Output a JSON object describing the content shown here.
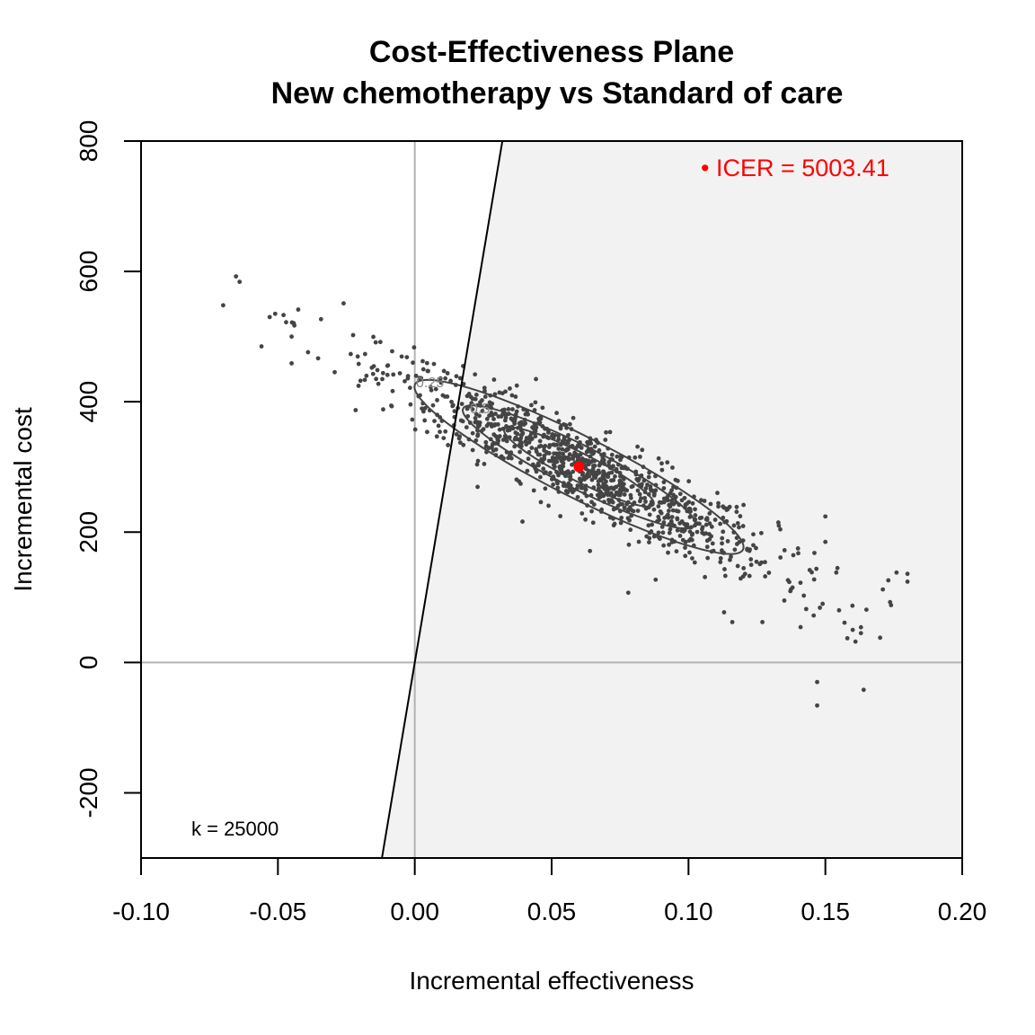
{
  "chart_data": {
    "type": "scatter",
    "title": "Cost-Effectiveness Plane",
    "subtitle": "New chemotherapy vs Standard of care",
    "xlabel": "Incremental effectiveness",
    "ylabel": "Incremental cost",
    "xlim": [
      -0.1,
      0.2
    ],
    "ylim": [
      -300,
      800
    ],
    "x_ticks": [
      -0.1,
      -0.05,
      0.0,
      0.05,
      0.1,
      0.15,
      0.2
    ],
    "x_tick_labels": [
      "-0.10",
      "-0.05",
      "0.00",
      "0.05",
      "0.10",
      "0.15",
      "0.20"
    ],
    "y_ticks": [
      -200,
      0,
      200,
      400,
      600,
      800
    ],
    "y_tick_labels": [
      "-200",
      "0",
      "200",
      "400",
      "600",
      "800"
    ],
    "grid": false,
    "reference_lines": {
      "x": 0,
      "y": 0,
      "color": "#b3b3b3"
    },
    "willingness_to_pay": {
      "k": 25000,
      "label": "k = 25000",
      "label_position": "bottom-left"
    },
    "sustainability_area_color": "#f2f2f2",
    "point_color": "#444444",
    "icer": {
      "x": 0.06,
      "y": 300.2,
      "value": 5003.41,
      "label": "• ICER = 5003.41",
      "color": "#ff0000",
      "label_position": "top-right"
    },
    "contours": [
      {
        "level": "0.25",
        "center": [
          0.06,
          300
        ],
        "sd": [
          0.036,
          80
        ],
        "rho": -0.92,
        "scale": 1.67
      },
      {
        "level": "0.5",
        "center": [
          0.06,
          300
        ],
        "sd": [
          0.036,
          80
        ],
        "rho": -0.92,
        "scale": 1.18
      },
      {
        "level": "0.75",
        "center": [
          0.06,
          300
        ],
        "sd": [
          0.036,
          80
        ],
        "rho": -0.92,
        "scale": 0.76
      }
    ],
    "simulations": {
      "n": 1000,
      "mean": [
        0.06,
        300
      ],
      "sd": [
        0.036,
        80
      ],
      "rho": -0.92,
      "note": "bivariate normal cloud of PSA simulations (e, c)"
    },
    "outliers": [
      [
        -0.07,
        548
      ],
      [
        -0.064,
        584
      ],
      [
        -0.053,
        530
      ],
      [
        -0.051,
        535
      ],
      [
        -0.047,
        522
      ],
      [
        -0.044,
        517
      ],
      [
        -0.045,
        500
      ],
      [
        -0.056,
        485
      ],
      [
        -0.045,
        459
      ],
      [
        -0.026,
        551
      ],
      [
        -0.039,
        476
      ],
      [
        0.007,
        458
      ],
      [
        0.022,
        442
      ],
      [
        0.064,
        171
      ],
      [
        0.078,
        107
      ],
      [
        0.088,
        127
      ],
      [
        0.106,
        131
      ],
      [
        0.113,
        77
      ],
      [
        0.116,
        62
      ],
      [
        0.127,
        62
      ],
      [
        0.135,
        95
      ],
      [
        0.138,
        115
      ],
      [
        0.143,
        82
      ],
      [
        0.148,
        84
      ],
      [
        0.149,
        90
      ],
      [
        0.155,
        80
      ],
      [
        0.154,
        138
      ],
      [
        0.157,
        61
      ],
      [
        0.16,
        50
      ],
      [
        0.161,
        32
      ],
      [
        0.163,
        45
      ],
      [
        0.165,
        81
      ],
      [
        0.171,
        112
      ],
      [
        0.173,
        126
      ],
      [
        0.174,
        88
      ],
      [
        0.176,
        138
      ],
      [
        0.18,
        124
      ],
      [
        0.18,
        136
      ],
      [
        0.15,
        224
      ],
      [
        0.15,
        185
      ],
      [
        0.17,
        38
      ],
      [
        0.147,
        -30
      ],
      [
        0.147,
        -66
      ],
      [
        0.164,
        -42
      ],
      [
        0.163,
        54
      ],
      [
        0.146,
        168
      ],
      [
        0.14,
        175
      ],
      [
        0.133,
        210
      ],
      [
        0.12,
        132
      ],
      [
        0.118,
        148
      ]
    ]
  }
}
